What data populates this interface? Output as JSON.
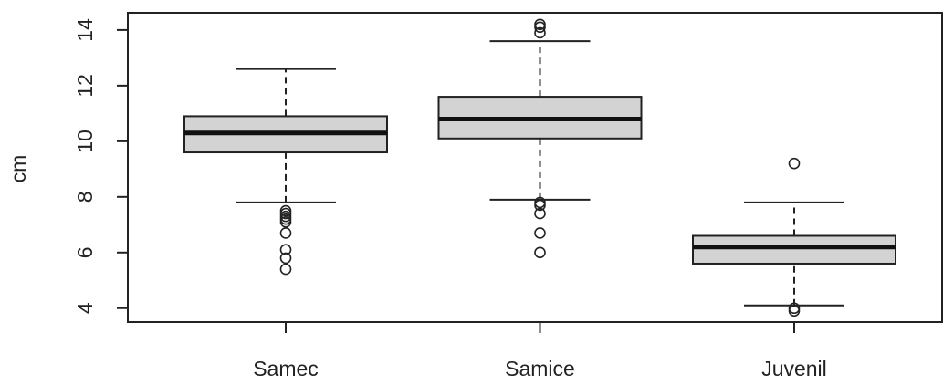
{
  "chart_data": {
    "type": "box",
    "ylabel": "cm",
    "categories": [
      "Samec",
      "Samice",
      "Juvenil"
    ],
    "boxes": [
      {
        "low": 7.8,
        "q1": 9.6,
        "median": 10.3,
        "q3": 10.9,
        "high": 12.6,
        "outliers": [
          7.5,
          7.4,
          7.3,
          7.2,
          7.1,
          6.7,
          6.1,
          5.8,
          5.4
        ]
      },
      {
        "low": 7.9,
        "q1": 10.1,
        "median": 10.8,
        "q3": 11.6,
        "high": 13.6,
        "outliers": [
          14.2,
          14.1,
          13.9,
          7.8,
          7.7,
          7.4,
          6.7,
          6.0
        ]
      },
      {
        "low": 4.1,
        "q1": 5.6,
        "median": 6.2,
        "q3": 6.6,
        "high": 7.8,
        "outliers": [
          9.2,
          4.0,
          3.9
        ]
      }
    ],
    "color": "#d3d3d3",
    "ylim": [
      3.5,
      14.62
    ],
    "yticks": [
      4,
      6,
      8,
      10,
      12,
      14
    ]
  }
}
